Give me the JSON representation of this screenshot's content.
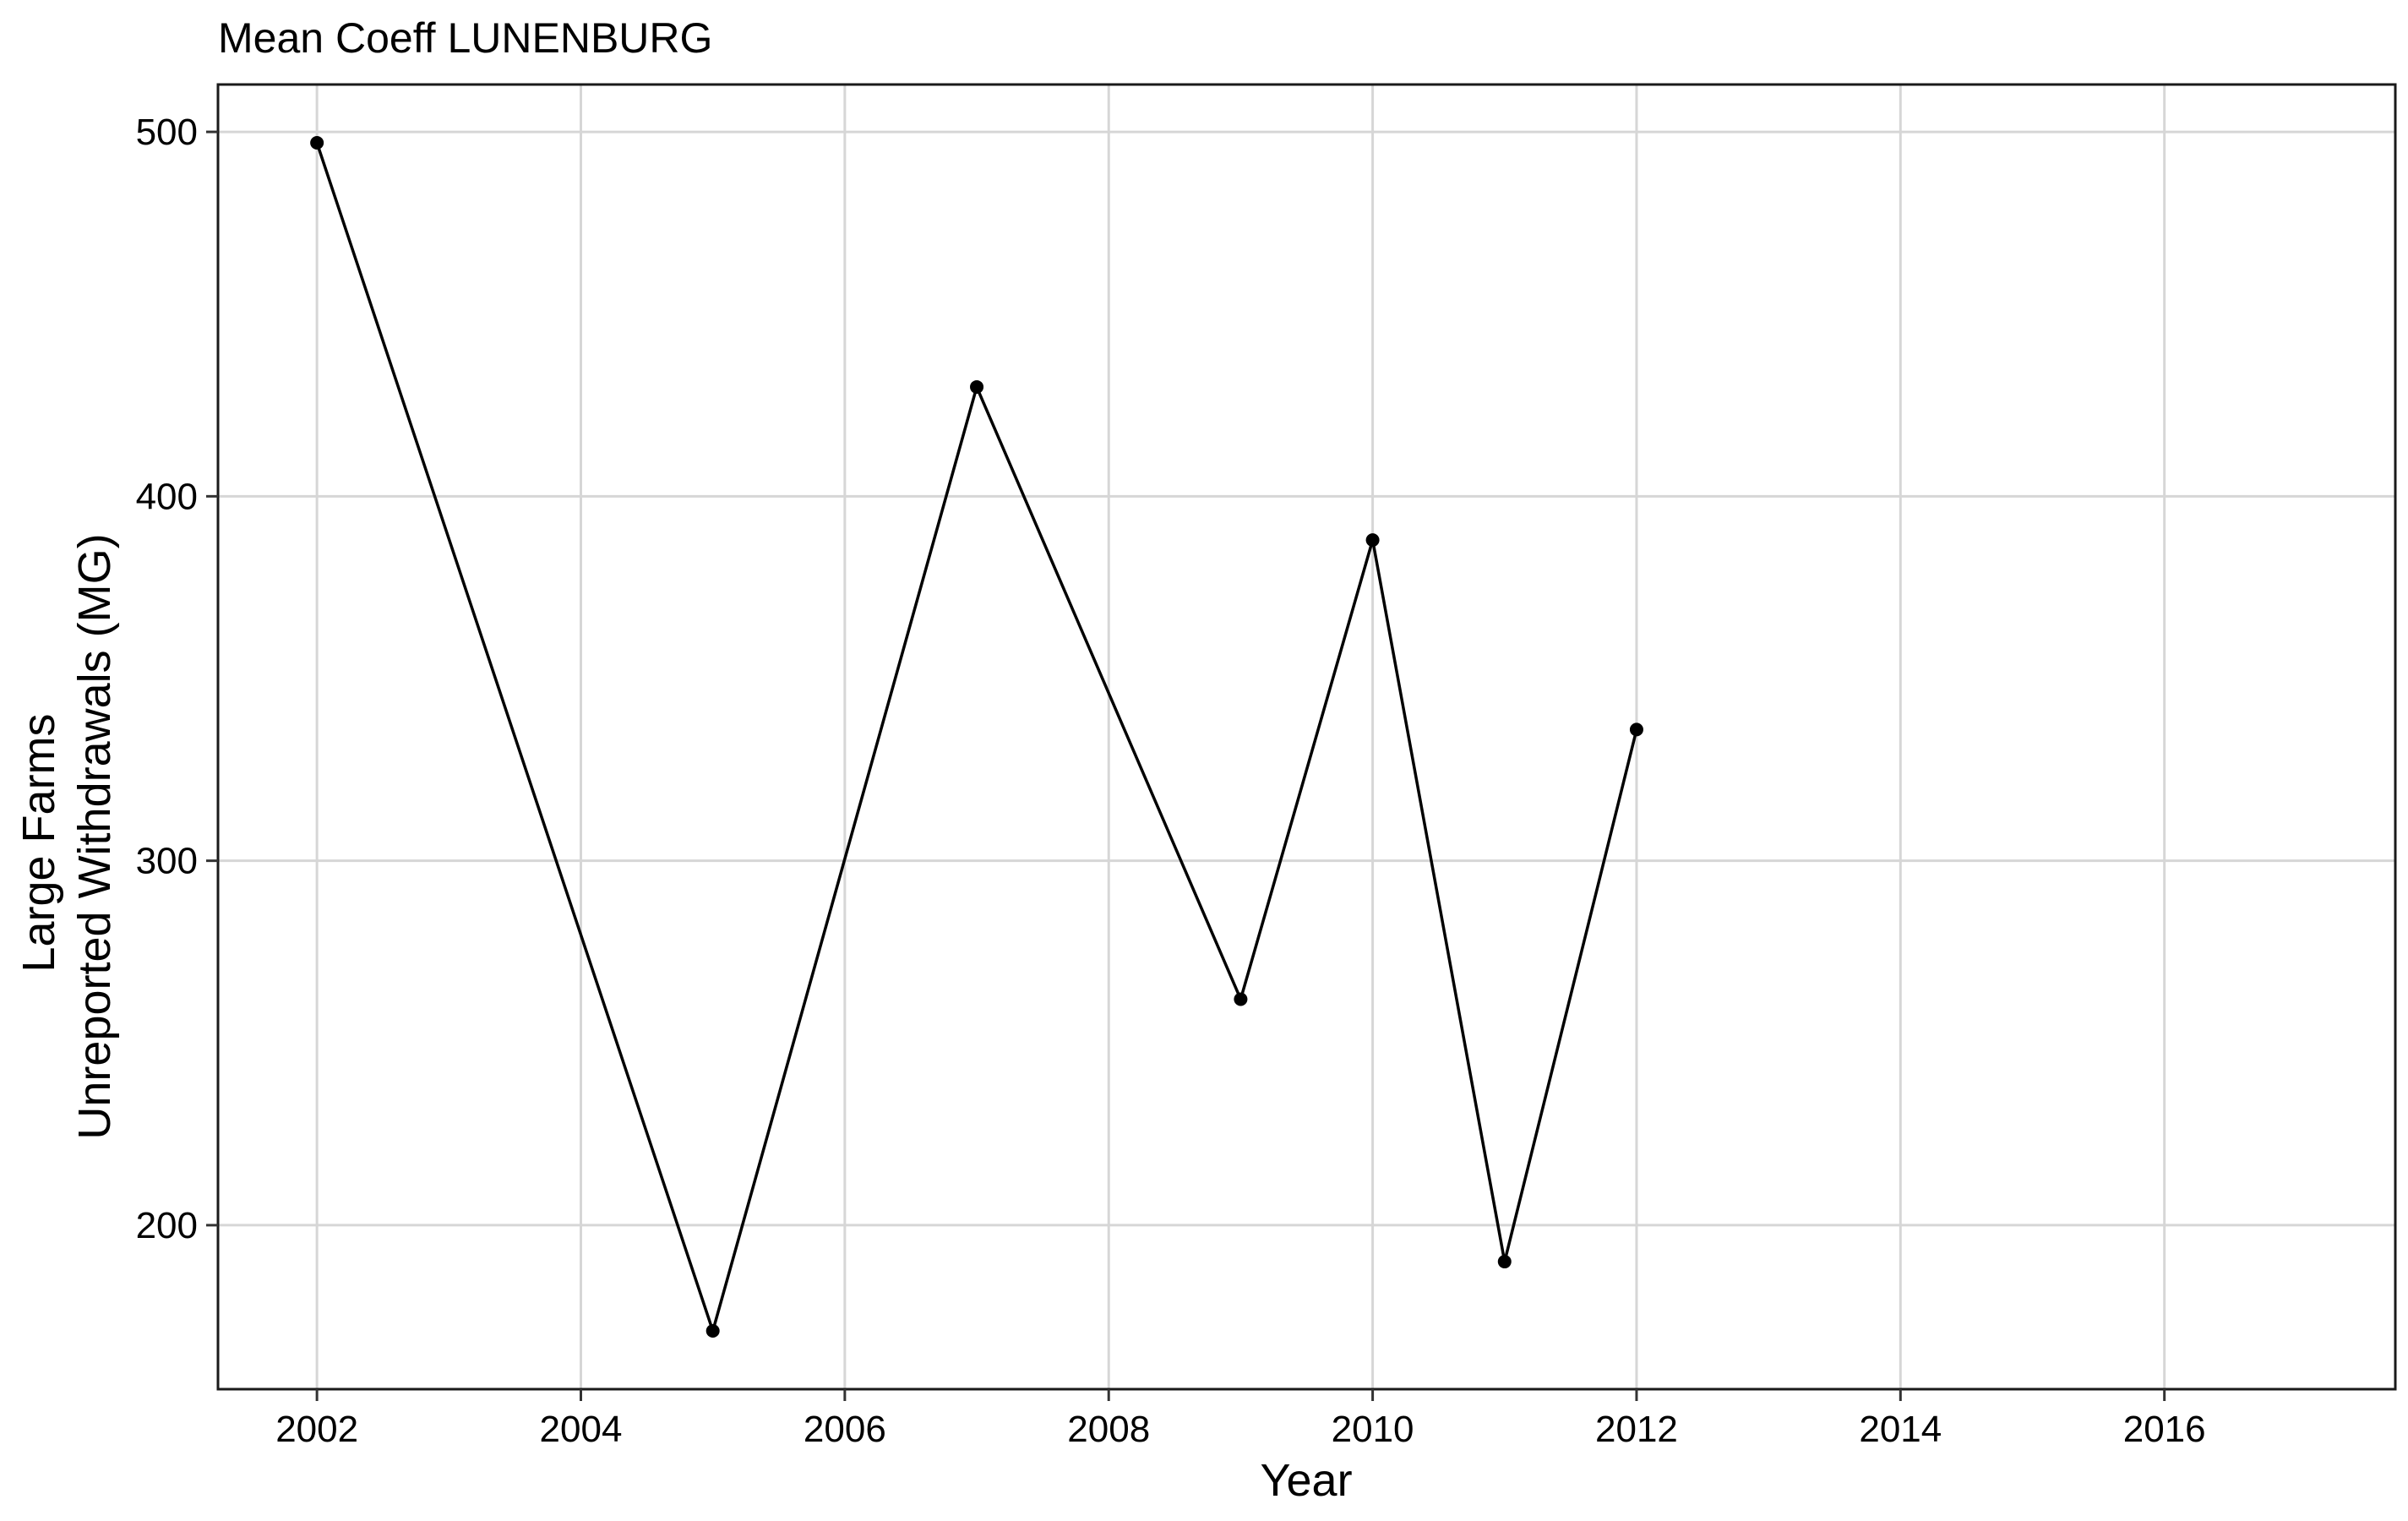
{
  "chart_data": {
    "type": "line",
    "title": "Mean Coeff LUNENBURG",
    "xlabel": "Year",
    "ylabel_lines": [
      "Large Farms",
      "Unreported Withdrawals (MG)"
    ],
    "xlim": [
      2001.25,
      2017.75
    ],
    "ylim": [
      155,
      513
    ],
    "x_ticks": [
      2002,
      2004,
      2006,
      2008,
      2010,
      2012,
      2014,
      2016
    ],
    "y_ticks": [
      200,
      300,
      400,
      500
    ],
    "x_tick_labels": [
      "2002",
      "2004",
      "2006",
      "2008",
      "2010",
      "2012",
      "2014",
      "2016"
    ],
    "y_tick_labels": [
      "200",
      "300",
      "400",
      "500"
    ],
    "grid": true,
    "legend": "none",
    "line_color": "#000000",
    "series": [
      {
        "x": [
          2002,
          2005,
          2007,
          2009,
          2010,
          2011,
          2012
        ],
        "y": [
          497,
          171,
          430,
          262,
          388,
          190,
          336
        ]
      }
    ]
  }
}
